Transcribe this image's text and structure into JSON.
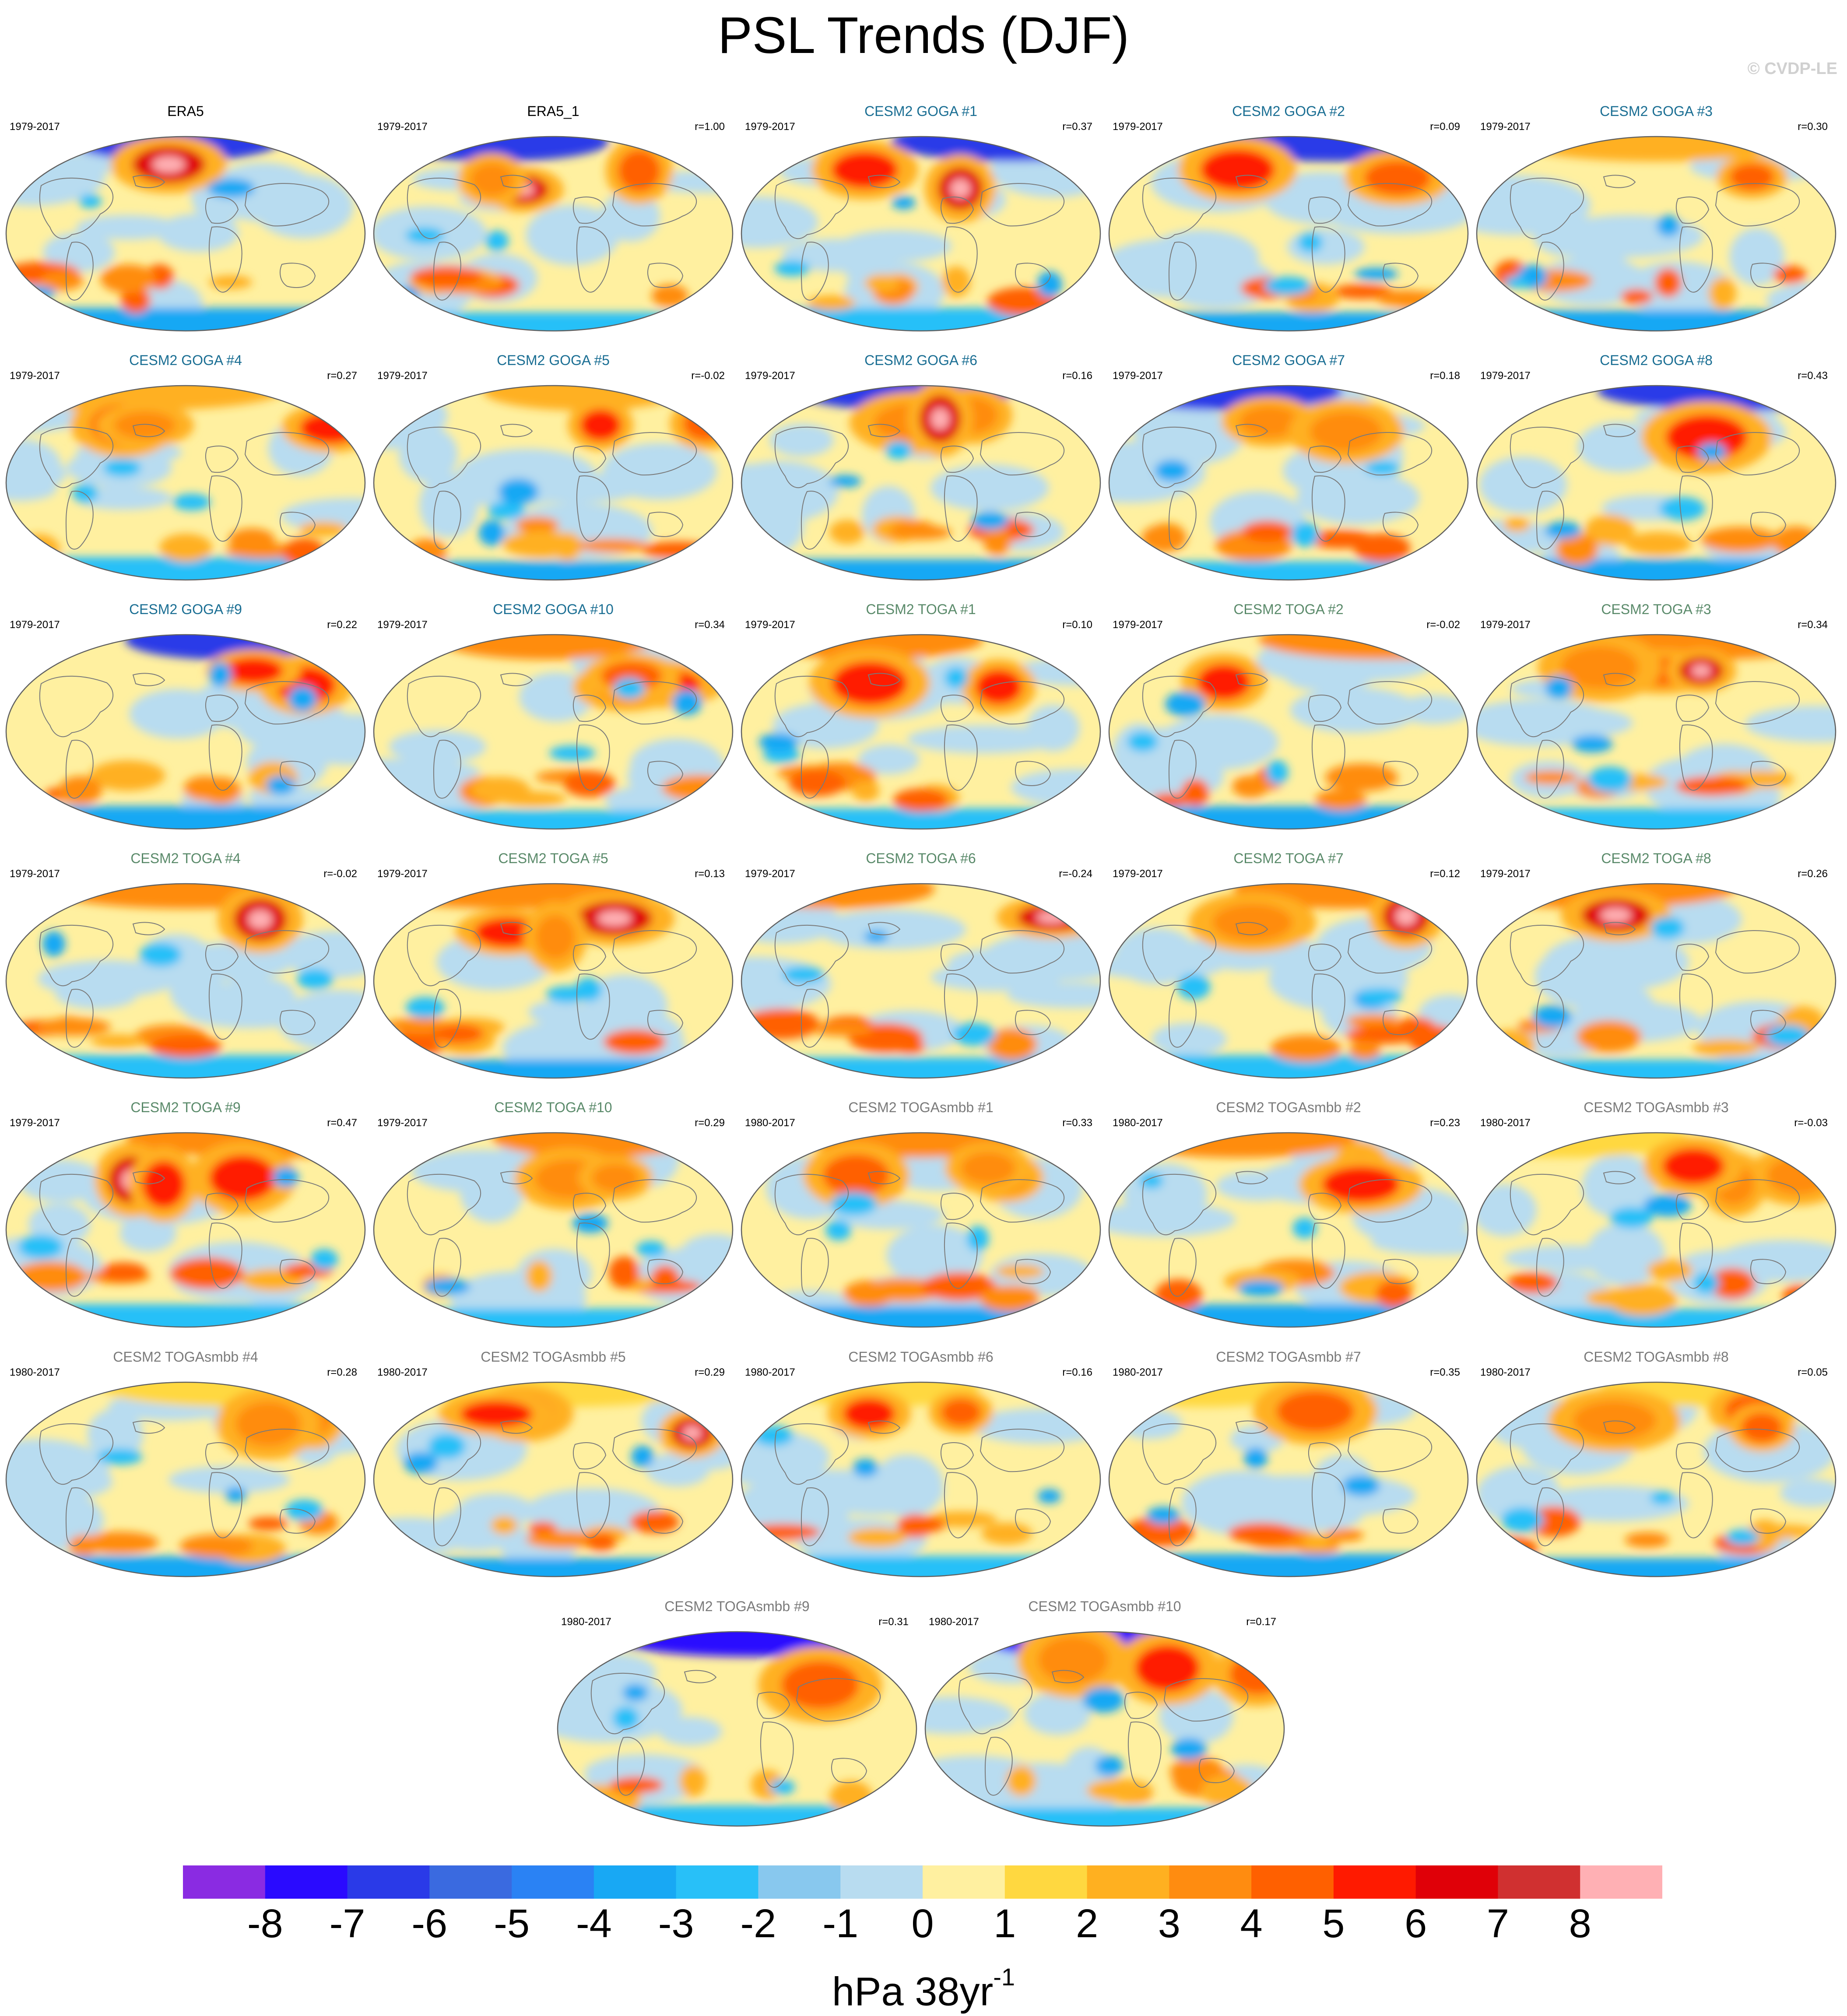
{
  "title": "PSL Trends (DJF)",
  "watermark": "© CVDP-LE",
  "units_base": "hPa 38yr",
  "units_exp": "-1",
  "colors": {
    "title_obs": "#000000",
    "title_goga": "#1a6e93",
    "title_toga": "#5a8a6a",
    "title_togasmbb": "#7a7a7a",
    "land_outline": "#7a7a7a",
    "map_border": "#606060"
  },
  "colorbar": {
    "colors": [
      "#8a2be2",
      "#2a0aff",
      "#2a3ae8",
      "#3a6ae0",
      "#2a82f4",
      "#18a8f4",
      "#28c0f8",
      "#88c8ee",
      "#b8dcf0",
      "#fff0a0",
      "#ffd840",
      "#ffb020",
      "#ff8c10",
      "#ff6000",
      "#ff1a00",
      "#e00008",
      "#d03030",
      "#ffb0b4"
    ],
    "labels": [
      "-8",
      "-7",
      "-6",
      "-5",
      "-4",
      "-3",
      "-2",
      "-1",
      "0",
      "1",
      "2",
      "3",
      "4",
      "5",
      "6",
      "7",
      "8"
    ]
  },
  "maps": [
    {
      "title": "ERA5",
      "group": "obs",
      "period": "1979-2017",
      "corr": ""
    },
    {
      "title": "ERA5_1",
      "group": "obs",
      "period": "1979-2017",
      "corr": "r=1.00"
    },
    {
      "title": "CESM2 GOGA #1",
      "group": "goga",
      "period": "1979-2017",
      "corr": "r=0.37"
    },
    {
      "title": "CESM2 GOGA #2",
      "group": "goga",
      "period": "1979-2017",
      "corr": "r=0.09"
    },
    {
      "title": "CESM2 GOGA #3",
      "group": "goga",
      "period": "1979-2017",
      "corr": "r=0.30"
    },
    {
      "title": "CESM2 GOGA #4",
      "group": "goga",
      "period": "1979-2017",
      "corr": "r=0.27"
    },
    {
      "title": "CESM2 GOGA #5",
      "group": "goga",
      "period": "1979-2017",
      "corr": "r=-0.02"
    },
    {
      "title": "CESM2 GOGA #6",
      "group": "goga",
      "period": "1979-2017",
      "corr": "r=0.16"
    },
    {
      "title": "CESM2 GOGA #7",
      "group": "goga",
      "period": "1979-2017",
      "corr": "r=0.18"
    },
    {
      "title": "CESM2 GOGA #8",
      "group": "goga",
      "period": "1979-2017",
      "corr": "r=0.43"
    },
    {
      "title": "CESM2 GOGA #9",
      "group": "goga",
      "period": "1979-2017",
      "corr": "r=0.22"
    },
    {
      "title": "CESM2 GOGA #10",
      "group": "goga",
      "period": "1979-2017",
      "corr": "r=0.34"
    },
    {
      "title": "CESM2 TOGA #1",
      "group": "toga",
      "period": "1979-2017",
      "corr": "r=0.10"
    },
    {
      "title": "CESM2 TOGA #2",
      "group": "toga",
      "period": "1979-2017",
      "corr": "r=-0.02"
    },
    {
      "title": "CESM2 TOGA #3",
      "group": "toga",
      "period": "1979-2017",
      "corr": "r=0.34"
    },
    {
      "title": "CESM2 TOGA #4",
      "group": "toga",
      "period": "1979-2017",
      "corr": "r=-0.02"
    },
    {
      "title": "CESM2 TOGA #5",
      "group": "toga",
      "period": "1979-2017",
      "corr": "r=0.13"
    },
    {
      "title": "CESM2 TOGA #6",
      "group": "toga",
      "period": "1979-2017",
      "corr": "r=-0.24"
    },
    {
      "title": "CESM2 TOGA #7",
      "group": "toga",
      "period": "1979-2017",
      "corr": "r=0.12"
    },
    {
      "title": "CESM2 TOGA #8",
      "group": "toga",
      "period": "1979-2017",
      "corr": "r=0.26"
    },
    {
      "title": "CESM2 TOGA #9",
      "group": "toga",
      "period": "1979-2017",
      "corr": "r=0.47"
    },
    {
      "title": "CESM2 TOGA #10",
      "group": "toga",
      "period": "1979-2017",
      "corr": "r=0.29"
    },
    {
      "title": "CESM2 TOGAsmbb #1",
      "group": "togasmbb",
      "period": "1980-2017",
      "corr": "r=0.33"
    },
    {
      "title": "CESM2 TOGAsmbb #2",
      "group": "togasmbb",
      "period": "1980-2017",
      "corr": "r=0.23"
    },
    {
      "title": "CESM2 TOGAsmbb #3",
      "group": "togasmbb",
      "period": "1980-2017",
      "corr": "r=-0.03"
    },
    {
      "title": "CESM2 TOGAsmbb #4",
      "group": "togasmbb",
      "period": "1980-2017",
      "corr": "r=0.28"
    },
    {
      "title": "CESM2 TOGAsmbb #5",
      "group": "togasmbb",
      "period": "1980-2017",
      "corr": "r=0.29"
    },
    {
      "title": "CESM2 TOGAsmbb #6",
      "group": "togasmbb",
      "period": "1980-2017",
      "corr": "r=0.16"
    },
    {
      "title": "CESM2 TOGAsmbb #7",
      "group": "togasmbb",
      "period": "1980-2017",
      "corr": "r=0.35"
    },
    {
      "title": "CESM2 TOGAsmbb #8",
      "group": "togasmbb",
      "period": "1980-2017",
      "corr": "r=0.05"
    },
    {
      "title": "CESM2 TOGAsmbb #9",
      "group": "togasmbb",
      "period": "1980-2017",
      "corr": "r=0.31"
    },
    {
      "title": "CESM2 TOGAsmbb #10",
      "group": "togasmbb",
      "period": "1980-2017",
      "corr": "r=0.17"
    }
  ]
}
